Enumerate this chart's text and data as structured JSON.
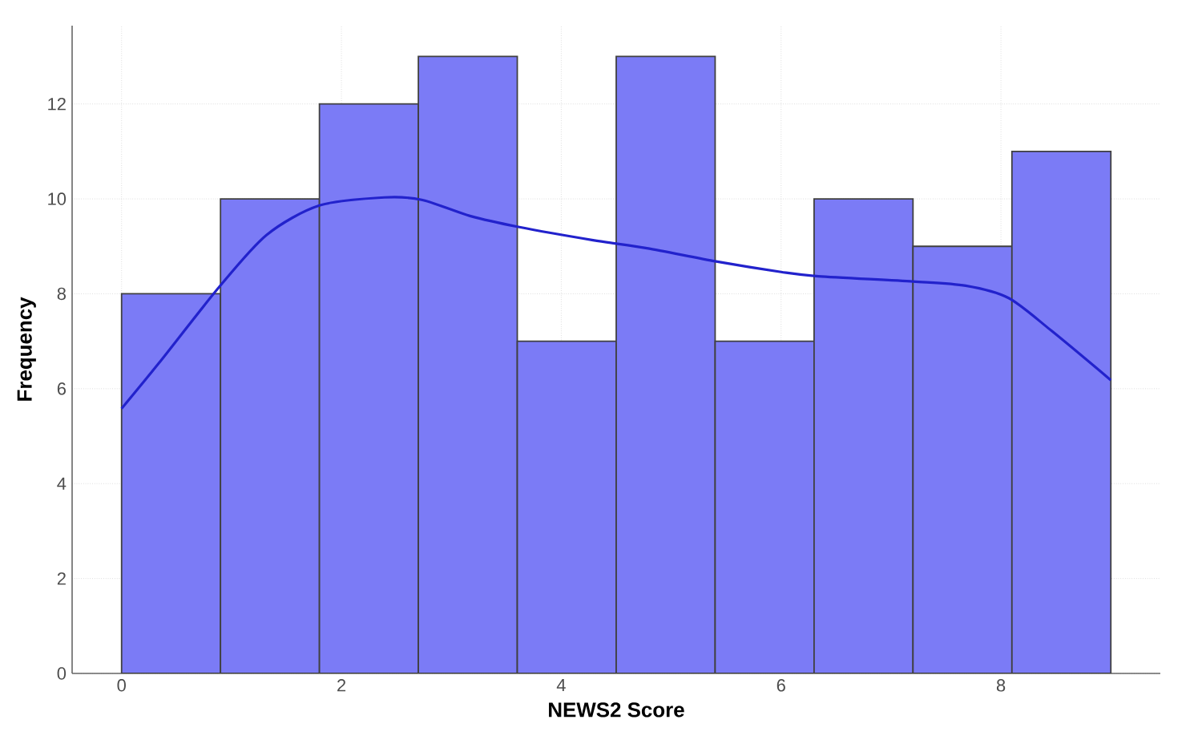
{
  "chart_data": {
    "type": "histogram",
    "xlabel": "NEWS2 Score",
    "ylabel": "Frequency",
    "bins": [
      0,
      0.9,
      1.8,
      2.7,
      3.6,
      4.5,
      5.4,
      6.3,
      7.2,
      8.1,
      9.0
    ],
    "values": [
      8,
      10,
      12,
      13,
      7,
      13,
      7,
      10,
      9,
      11
    ],
    "color": "#7b7bf6",
    "series": [
      {
        "type": "line",
        "color": "#2222cc",
        "x": [
          0,
          0.34,
          0.88,
          1.32,
          1.8,
          2.39,
          2.73,
          3.17,
          3.61,
          4.29,
          4.78,
          5.41,
          6.0,
          6.34,
          7.2,
          7.68,
          8.07,
          8.46,
          9.0
        ],
        "values": [
          5.58,
          6.54,
          8.12,
          9.24,
          9.86,
          10.03,
          9.98,
          9.64,
          9.41,
          9.13,
          8.96,
          8.68,
          8.46,
          8.37,
          8.26,
          8.17,
          7.91,
          7.22,
          6.18
        ]
      }
    ],
    "xlim": [
      -0.45,
      9.45
    ],
    "ylim": [
      0,
      13.65
    ],
    "xticks": [
      0,
      2,
      4,
      6,
      8
    ],
    "yticks": [
      0,
      2,
      4,
      6,
      8,
      10,
      12
    ],
    "grid": true
  }
}
